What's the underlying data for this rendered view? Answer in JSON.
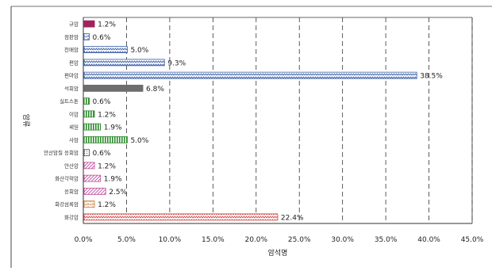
{
  "chart_data": {
    "type": "bar",
    "orientation": "horizontal",
    "xlabel": "암석명",
    "ylabel": "암류",
    "xlim": [
      0,
      45
    ],
    "x_ticks": [
      "0.0%",
      "5.0%",
      "10.0%",
      "15.0%",
      "20.0%",
      "25.0%",
      "30.0%",
      "35.0%",
      "40.0%",
      "45.0%"
    ],
    "grid": "vertical-dashed",
    "categories": [
      "규암",
      "점판암",
      "천매암",
      "편암",
      "편마암",
      "석회암",
      "실트스톤",
      "이암",
      "셰일",
      "사암",
      "안산암질 응회암",
      "안산암",
      "화산각력암",
      "응회암",
      "화강섬록암",
      "화강암"
    ],
    "values": [
      1.2,
      0.6,
      5.0,
      9.3,
      38.5,
      6.8,
      0.6,
      1.2,
      1.9,
      5.0,
      0.6,
      1.2,
      1.9,
      2.5,
      1.2,
      22.4
    ],
    "value_labels": [
      "1.2%",
      "0.6%",
      "5.0%",
      "9.3%",
      "38.5%",
      "6.8%",
      "0.6%",
      "1.2%",
      "1.9%",
      "5.0%",
      "0.6%",
      "1.2%",
      "1.9%",
      "2.5%",
      "1.2%",
      "22.4%"
    ],
    "bar_styles": [
      {
        "fill": "#a0245a",
        "pattern": "solid"
      },
      {
        "fill": "#3a5fa8",
        "pattern": "brick"
      },
      {
        "fill": "#3a5fa8",
        "pattern": "zigzag"
      },
      {
        "fill": "#3a5fa8",
        "pattern": "zigzag"
      },
      {
        "fill": "#3a5fa8",
        "pattern": "zigzag"
      },
      {
        "fill": "#6d6d6d",
        "pattern": "solid"
      },
      {
        "fill": "#2e8b2e",
        "pattern": "vstripe"
      },
      {
        "fill": "#2e8b2e",
        "pattern": "vstripe"
      },
      {
        "fill": "#2e8b2e",
        "pattern": "vstripe"
      },
      {
        "fill": "#2e8b2e",
        "pattern": "vstripe"
      },
      {
        "fill": "#555555",
        "pattern": "dots"
      },
      {
        "fill": "#c04d9c",
        "pattern": "diag"
      },
      {
        "fill": "#c04d9c",
        "pattern": "diag"
      },
      {
        "fill": "#c04d9c",
        "pattern": "diag"
      },
      {
        "fill": "#c87a35",
        "pattern": "brick"
      },
      {
        "fill": "#d24a4a",
        "pattern": "zigzag"
      }
    ]
  }
}
